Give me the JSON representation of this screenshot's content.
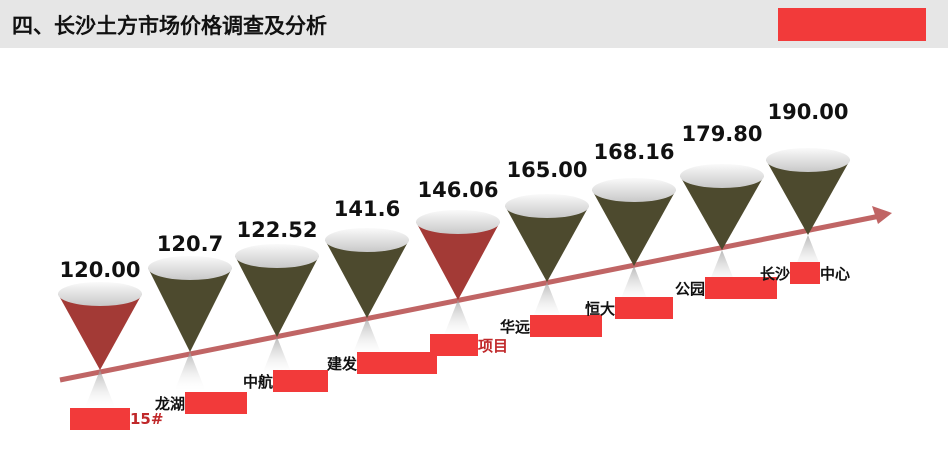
{
  "header": {
    "title": "四、长沙土方市场价格调查及分析",
    "accent": "#f23a3a"
  },
  "cones": [
    {
      "value": "120.00",
      "color": "red"
    },
    {
      "value": "120.7",
      "color": "olive"
    },
    {
      "value": "122.52",
      "color": "olive"
    },
    {
      "value": "141.6",
      "color": "olive"
    },
    {
      "value": "146.06",
      "color": "red"
    },
    {
      "value": "165.00",
      "color": "olive"
    },
    {
      "value": "168.16",
      "color": "olive"
    },
    {
      "value": "179.80",
      "color": "olive"
    },
    {
      "value": "190.00",
      "color": "olive"
    }
  ],
  "labels": [
    {
      "prefix": "",
      "suffix": "15#",
      "style": "red"
    },
    {
      "prefix": "龙湖",
      "suffix": ""
    },
    {
      "prefix": "中航",
      "suffix": ""
    },
    {
      "prefix": "建发",
      "suffix": ""
    },
    {
      "prefix": "",
      "suffix": "项目",
      "style": "red"
    },
    {
      "prefix": "华远",
      "suffix": ""
    },
    {
      "prefix": "恒大",
      "suffix": ""
    },
    {
      "prefix": "公园",
      "suffix": ""
    },
    {
      "prefix": "长沙",
      "suffix": "中心"
    }
  ],
  "colors": {
    "red": "#a33a36",
    "olive": "#4d4a2e",
    "arrow": "#c06565"
  }
}
